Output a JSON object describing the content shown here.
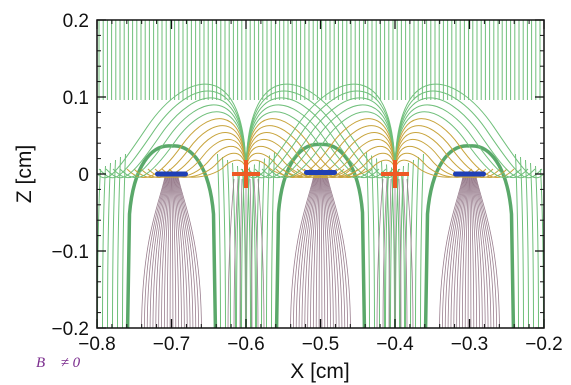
{
  "chart_data": {
    "type": "field-line plot",
    "title": "",
    "xlabel": "X [cm]",
    "ylabel": "Z [cm]",
    "xlim": [
      -0.8,
      -0.2
    ],
    "ylim": [
      -0.2,
      0.2
    ],
    "x_ticks": [
      -0.8,
      -0.7,
      -0.6,
      -0.5,
      -0.4,
      -0.3,
      -0.2
    ],
    "x_tick_labels": [
      "−0.8",
      "−0.7",
      "−0.6",
      "−0.5",
      "−0.4",
      "−0.3",
      "−0.2"
    ],
    "y_ticks": [
      -0.2,
      -0.1,
      0,
      0.1,
      0.2
    ],
    "y_tick_labels": [
      "−0.2",
      "−0.1",
      "0",
      "0.1",
      "0.2"
    ],
    "grid": false,
    "negative_charges": [
      {
        "x": -0.7,
        "z": 0.0
      },
      {
        "x": -0.5,
        "z": 0.002
      },
      {
        "x": -0.3,
        "z": 0.0
      }
    ],
    "positive_charges": [
      {
        "x": -0.6,
        "z": 0.0
      },
      {
        "x": -0.4,
        "z": 0.0
      }
    ],
    "colors": {
      "field_lines_outer": "#6fbf7a",
      "field_lines_boundary": "#5aa86a",
      "field_lines_middle": "#c8a43c",
      "field_lines_inner": "#9a7f8f",
      "negative_marker": "#1f3fb5",
      "positive_marker": "#ee5a24"
    }
  },
  "annotation": "B⃗ ≠ 0"
}
